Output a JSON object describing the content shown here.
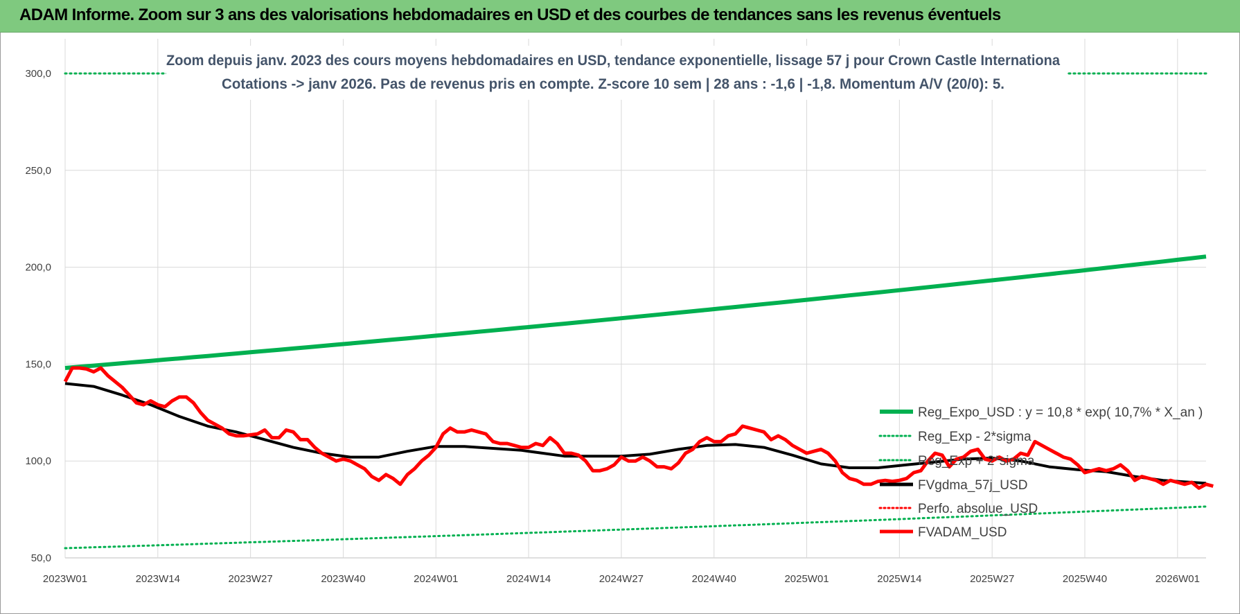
{
  "header": {
    "title": "ADAM Informe. Zoom sur 3 ans des valorisations hebdomadaires en USD et des courbes de tendances sans les revenus éventuels"
  },
  "chart_data": {
    "type": "line",
    "title": "Zoom depuis janv. 2023 des cours moyens hebdomadaires en USD, tendance exponentielle, lissage 57 j pour Crown Castle Internationa",
    "subtitle": "Cotations -> janv 2026. Pas de revenus pris en compte. Z-score 10 sem | 28 ans : -1,6 | -1,8. Momentum A/V (20/0): 5.",
    "ylim": [
      50,
      300
    ],
    "yticks": [
      "50,0",
      "100,0",
      "150,0",
      "200,0",
      "250,0",
      "300,0"
    ],
    "yticks_values": [
      50,
      100,
      150,
      200,
      250,
      300
    ],
    "x_labels": [
      "2023W01",
      "2023W14",
      "2023W27",
      "2023W40",
      "2024W01",
      "2024W14",
      "2024W27",
      "2024W40",
      "2025W01",
      "2025W14",
      "2025W27",
      "2025W40",
      "2026W01"
    ],
    "x_label_week_index": [
      0,
      13,
      26,
      39,
      52,
      65,
      78,
      91,
      104,
      117,
      130,
      143,
      156
    ],
    "weeks_total": 160,
    "grid": true,
    "legend_position": "bottom-right",
    "series": [
      {
        "name": "Reg_Expo_USD : y = 10,8 * exp( 10,7% *  X_an )",
        "color": "#00b050",
        "style": "solid",
        "values_start_end": [
          148,
          205.5
        ]
      },
      {
        "name": "Reg_Exp - 2*sigma",
        "color": "#00b050",
        "style": "dotted",
        "values_start_end": [
          55,
          76.5
        ]
      },
      {
        "name": "Reg_Exp + 2*sigma",
        "color": "#00b050",
        "style": "dotted",
        "values": [
          300,
          300
        ]
      },
      {
        "name": "FVgdma_57j_USD",
        "color": "#000000",
        "style": "solid",
        "points": [
          [
            0,
            140
          ],
          [
            4,
            138.5
          ],
          [
            8,
            134
          ],
          [
            12,
            129
          ],
          [
            16,
            123
          ],
          [
            20,
            118
          ],
          [
            24,
            115
          ],
          [
            28,
            111
          ],
          [
            32,
            107
          ],
          [
            36,
            104
          ],
          [
            40,
            102
          ],
          [
            44,
            102
          ],
          [
            48,
            105
          ],
          [
            52,
            107.5
          ],
          [
            56,
            107.5
          ],
          [
            60,
            106.5
          ],
          [
            64,
            105.5
          ],
          [
            67,
            104
          ],
          [
            70,
            102.5
          ],
          [
            74,
            102.5
          ],
          [
            78,
            102.5
          ],
          [
            82,
            103.5
          ],
          [
            86,
            106
          ],
          [
            90,
            108
          ],
          [
            94,
            108.5
          ],
          [
            98,
            107
          ],
          [
            102,
            103
          ],
          [
            106,
            98.5
          ],
          [
            110,
            96.5
          ],
          [
            114,
            96.5
          ],
          [
            118,
            98
          ],
          [
            122,
            99.5
          ],
          [
            126,
            101
          ],
          [
            130,
            101.5
          ],
          [
            134,
            100
          ],
          [
            138,
            97
          ],
          [
            142,
            95.5
          ],
          [
            146,
            94.5
          ],
          [
            150,
            92
          ],
          [
            154,
            90
          ],
          [
            160,
            88.5
          ]
        ]
      },
      {
        "name": "Perfo. absolue_USD",
        "color": "#ff0000",
        "style": "dotted",
        "values": []
      },
      {
        "name": "FVADAM_USD",
        "color": "#ff0000",
        "style": "solid",
        "points": [
          [
            0,
            141
          ],
          [
            1,
            148
          ],
          [
            2,
            148
          ],
          [
            3,
            147.5
          ],
          [
            4,
            146
          ],
          [
            5,
            148
          ],
          [
            6,
            144
          ],
          [
            7,
            141
          ],
          [
            8,
            138
          ],
          [
            9,
            134
          ],
          [
            10,
            130
          ],
          [
            11,
            129
          ],
          [
            12,
            131
          ],
          [
            13,
            129
          ],
          [
            14,
            128
          ],
          [
            15,
            131
          ],
          [
            16,
            133
          ],
          [
            17,
            133
          ],
          [
            18,
            130
          ],
          [
            19,
            125
          ],
          [
            20,
            121
          ],
          [
            21,
            119
          ],
          [
            22,
            117
          ],
          [
            23,
            114
          ],
          [
            24,
            113
          ],
          [
            25,
            113
          ],
          [
            26,
            113.5
          ],
          [
            27,
            114
          ],
          [
            28,
            116
          ],
          [
            29,
            112
          ],
          [
            30,
            112
          ],
          [
            31,
            116
          ],
          [
            32,
            115
          ],
          [
            33,
            111
          ],
          [
            34,
            111
          ],
          [
            35,
            107
          ],
          [
            36,
            104
          ],
          [
            37,
            102
          ],
          [
            38,
            100
          ],
          [
            39,
            101
          ],
          [
            40,
            100
          ],
          [
            41,
            98
          ],
          [
            42,
            96
          ],
          [
            43,
            92
          ],
          [
            44,
            90
          ],
          [
            45,
            93
          ],
          [
            46,
            91
          ],
          [
            47,
            88
          ],
          [
            48,
            93
          ],
          [
            49,
            96
          ],
          [
            50,
            100
          ],
          [
            51,
            103
          ],
          [
            52,
            107
          ],
          [
            53,
            114
          ],
          [
            54,
            117
          ],
          [
            55,
            115
          ],
          [
            56,
            115
          ],
          [
            57,
            116
          ],
          [
            58,
            115
          ],
          [
            59,
            114
          ],
          [
            60,
            110
          ],
          [
            61,
            109
          ],
          [
            62,
            109
          ],
          [
            63,
            108
          ],
          [
            64,
            107
          ],
          [
            65,
            107
          ],
          [
            66,
            109
          ],
          [
            67,
            108
          ],
          [
            68,
            112
          ],
          [
            69,
            109
          ],
          [
            70,
            104
          ],
          [
            71,
            104
          ],
          [
            72,
            103
          ],
          [
            73,
            100
          ],
          [
            74,
            95
          ],
          [
            75,
            95
          ],
          [
            76,
            96
          ],
          [
            77,
            98
          ],
          [
            78,
            102
          ],
          [
            79,
            100
          ],
          [
            80,
            100
          ],
          [
            81,
            102
          ],
          [
            82,
            100
          ],
          [
            83,
            97
          ],
          [
            84,
            97
          ],
          [
            85,
            96
          ],
          [
            86,
            99
          ],
          [
            87,
            104
          ],
          [
            88,
            106
          ],
          [
            89,
            110
          ],
          [
            90,
            112
          ],
          [
            91,
            110
          ],
          [
            92,
            110
          ],
          [
            93,
            113
          ],
          [
            94,
            114
          ],
          [
            95,
            118
          ],
          [
            96,
            117
          ],
          [
            97,
            116
          ],
          [
            98,
            115
          ],
          [
            99,
            111
          ],
          [
            100,
            113
          ],
          [
            101,
            111
          ],
          [
            102,
            108
          ],
          [
            103,
            106
          ],
          [
            104,
            104
          ],
          [
            105,
            105
          ],
          [
            106,
            106
          ],
          [
            107,
            104
          ],
          [
            108,
            100
          ],
          [
            109,
            94
          ],
          [
            110,
            91
          ],
          [
            111,
            90
          ],
          [
            112,
            88
          ],
          [
            113,
            88
          ],
          [
            114,
            89.5
          ],
          [
            115,
            90
          ],
          [
            116,
            89.5
          ],
          [
            117,
            90
          ],
          [
            118,
            91
          ],
          [
            119,
            94
          ],
          [
            120,
            95
          ],
          [
            121,
            100
          ],
          [
            122,
            104
          ],
          [
            123,
            103
          ],
          [
            124,
            97
          ],
          [
            125,
            101
          ],
          [
            126,
            102
          ],
          [
            127,
            105
          ],
          [
            128,
            106
          ],
          [
            129,
            101
          ],
          [
            130,
            100
          ],
          [
            131,
            102
          ],
          [
            132,
            100
          ],
          [
            133,
            101
          ],
          [
            134,
            104
          ],
          [
            135,
            103
          ],
          [
            136,
            110
          ],
          [
            137,
            108
          ],
          [
            138,
            106
          ],
          [
            139,
            104
          ],
          [
            140,
            102
          ],
          [
            141,
            101
          ],
          [
            142,
            98
          ],
          [
            143,
            94
          ],
          [
            144,
            95
          ],
          [
            145,
            96
          ],
          [
            146,
            95
          ],
          [
            147,
            96
          ],
          [
            148,
            98
          ],
          [
            149,
            95
          ],
          [
            150,
            90
          ],
          [
            151,
            92
          ],
          [
            152,
            91
          ],
          [
            153,
            90
          ],
          [
            154,
            88
          ],
          [
            155,
            90
          ],
          [
            156,
            89
          ],
          [
            157,
            88
          ],
          [
            158,
            89
          ],
          [
            159,
            86
          ],
          [
            160,
            88
          ],
          [
            161,
            87
          ]
        ]
      }
    ]
  }
}
